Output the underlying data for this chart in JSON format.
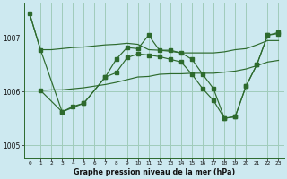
{
  "background_color": "#cde9f0",
  "grid_color": "#a0ccbb",
  "line_color": "#2d6a2d",
  "xlabel": "Graphe pression niveau de la mer (hPa)",
  "ylim": [
    1004.75,
    1007.65
  ],
  "xlim": [
    -0.5,
    23.5
  ],
  "yticks": [
    1005,
    1006,
    1007
  ],
  "xticks": [
    0,
    1,
    2,
    3,
    4,
    5,
    6,
    7,
    8,
    9,
    10,
    11,
    12,
    13,
    14,
    15,
    16,
    17,
    18,
    19,
    20,
    21,
    22,
    23
  ],
  "series": [
    {
      "x": [
        0,
        1,
        2,
        3,
        4,
        5,
        6,
        7,
        8,
        9,
        10,
        11,
        12,
        13,
        14,
        15,
        16,
        17,
        18,
        19,
        20,
        21,
        22,
        23
      ],
      "y": [
        1007.45,
        1006.78,
        1006.78,
        1006.8,
        1006.82,
        1006.83,
        1006.85,
        1006.87,
        1006.88,
        1006.9,
        1006.88,
        1006.78,
        1006.77,
        1006.75,
        1006.72,
        1006.72,
        1006.72,
        1006.72,
        1006.74,
        1006.78,
        1006.8,
        1006.87,
        1006.95,
        1006.95
      ],
      "has_markers": false
    },
    {
      "x": [
        1,
        2,
        3,
        4,
        5,
        6,
        7,
        8,
        9,
        10,
        11,
        12,
        13,
        14,
        15,
        16,
        17,
        18,
        19,
        20,
        21,
        22,
        23
      ],
      "y": [
        1006.02,
        1006.03,
        1006.03,
        1006.05,
        1006.07,
        1006.1,
        1006.13,
        1006.17,
        1006.22,
        1006.27,
        1006.28,
        1006.32,
        1006.33,
        1006.33,
        1006.34,
        1006.34,
        1006.34,
        1006.36,
        1006.38,
        1006.42,
        1006.48,
        1006.55,
        1006.58
      ],
      "has_markers": false
    },
    {
      "x": [
        1,
        3,
        4,
        5,
        7,
        8,
        9,
        10,
        11,
        12,
        13,
        14,
        15,
        16,
        17,
        18,
        19,
        20,
        21,
        22,
        23
      ],
      "y": [
        1006.02,
        1005.62,
        1005.72,
        1005.78,
        1006.27,
        1006.35,
        1006.63,
        1006.7,
        1006.68,
        1006.65,
        1006.6,
        1006.55,
        1006.32,
        1006.05,
        1005.83,
        1005.5,
        1005.53,
        1006.1,
        1006.5,
        1007.05,
        1007.08
      ],
      "has_markers": true
    },
    {
      "x": [
        0,
        1,
        3,
        5,
        7,
        8,
        9,
        10,
        11,
        12,
        13,
        14,
        15,
        16,
        17,
        18,
        19,
        20,
        21,
        22,
        23
      ],
      "y": [
        1007.45,
        1006.78,
        1005.62,
        1005.78,
        1006.27,
        1006.6,
        1006.82,
        1006.8,
        1007.05,
        1006.77,
        1006.77,
        1006.72,
        1006.6,
        1006.32,
        1006.05,
        1005.5,
        1005.53,
        1006.1,
        1006.5,
        1007.05,
        1007.1
      ],
      "has_markers": true
    }
  ]
}
